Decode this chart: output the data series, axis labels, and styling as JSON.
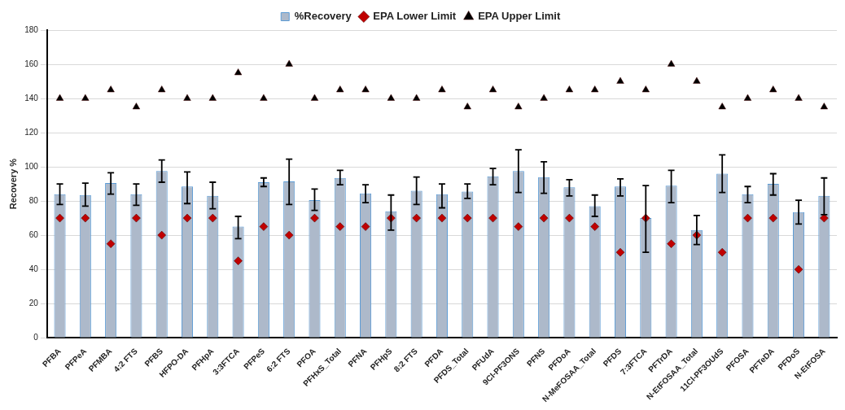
{
  "chart_data": {
    "type": "bar",
    "ylabel": "Recovery %",
    "categories": [
      "PFBA",
      "PFPeA",
      "PFMBA",
      "4:2 FTS",
      "PFBS",
      "HFPO-DA",
      "PFHpA",
      "3:3FTCA",
      "PFPeS",
      "6:2 FTS",
      "PFOA",
      "PFHxS_Total",
      "PFNA",
      "PFHpS",
      "8:2 FTS",
      "PFDA",
      "PFDS_Total",
      "PFUdA",
      "9Cl-PF3ONS",
      "PFNS",
      "PFDoA",
      "N-MeFOSAA_Total",
      "PFDS",
      "7:3FTCA",
      "PFTrDA",
      "N-EtFOSAA_Total",
      "11Cl-PF3OUdS",
      "PFOSA",
      "PFTeDA",
      "PFDoS",
      "N-EtFOSA"
    ],
    "series": [
      {
        "name": "%Recovery",
        "color": "#adb9ca",
        "values": [
          84,
          83.5,
          90.5,
          84,
          97.5,
          88.5,
          83,
          65,
          91,
          91.5,
          80.5,
          93.5,
          84.5,
          74,
          86,
          84,
          85.5,
          94.5,
          97.5,
          94,
          88,
          77,
          88.5,
          70,
          89,
          63,
          96,
          84,
          90,
          73.5,
          83
        ],
        "errors": [
          [
            78,
            90
          ],
          [
            77,
            90.5
          ],
          [
            84,
            96.5
          ],
          [
            77.5,
            90
          ],
          [
            91,
            104
          ],
          [
            78.5,
            97
          ],
          [
            75.5,
            91
          ],
          [
            58,
            71
          ],
          [
            88.5,
            93.5
          ],
          [
            78,
            104.5
          ],
          [
            74.5,
            87
          ],
          [
            89.5,
            98
          ],
          [
            79,
            89.5
          ],
          [
            63,
            83.5
          ],
          [
            78,
            94
          ],
          [
            76,
            90
          ],
          [
            81.5,
            90
          ],
          [
            89.5,
            99
          ],
          [
            85,
            110
          ],
          [
            84.5,
            103
          ],
          [
            83,
            92.5
          ],
          [
            71,
            83.5
          ],
          [
            83,
            93
          ],
          [
            50,
            89
          ],
          [
            79,
            98
          ],
          [
            54.5,
            71.5
          ],
          [
            85,
            107
          ],
          [
            79,
            88.5
          ],
          [
            83.5,
            96
          ],
          [
            66.5,
            80.5
          ],
          [
            72,
            93.5
          ]
        ]
      },
      {
        "name": "EPA Lower Limit",
        "type": "scatter",
        "marker": "diamond",
        "color": "#c00000",
        "x": [
          "PFBA",
          "PFPeA",
          "PFMBA",
          "4:2 FTS",
          "PFBS",
          "HFPO-DA",
          "PFHpA",
          "3:3FTCA",
          "PFPeS",
          "6:2 FTS",
          "PFOA",
          "PFHxS_Total",
          "PFNA",
          "PFHpS",
          "8:2 FTS",
          "PFDA",
          "PFDS_Total",
          "PFUdA",
          "9Cl-PF3ONS",
          "PFNS",
          "PFDoA",
          "N-MeFOSAA_Total",
          "PFDS",
          "7:3FTCA",
          "PFTrDA",
          "N-EtFOSAA_Total",
          "11Cl-PF3OUdS",
          "PFOSA",
          "PFTeDA",
          "PFDoS",
          "N-EtFOSA"
        ],
        "values": [
          70,
          70,
          55,
          70,
          60,
          70,
          70,
          45,
          65,
          60,
          70,
          65,
          65,
          70,
          70,
          70,
          70,
          70,
          65,
          70,
          70,
          65,
          50,
          70,
          55,
          60,
          50,
          70,
          70,
          40,
          70
        ]
      },
      {
        "name": "EPA Upper Limit",
        "type": "scatter",
        "marker": "triangle",
        "color": "#000000",
        "x": [
          "PFBA",
          "PFPeA",
          "PFMBA",
          "4:2 FTS",
          "PFBS",
          "HFPO-DA",
          "PFHpA",
          "3:3FTCA",
          "PFPeS",
          "6:2 FTS",
          "PFOA",
          "PFHxS_Total",
          "PFNA",
          "PFHpS",
          "8:2 FTS",
          "PFDA",
          "PFDS_Total",
          "PFUdA",
          "9Cl-PF3ONS",
          "PFNS",
          "PFDoA",
          "N-MeFOSAA_Total",
          "PFDS",
          "7:3FTCA",
          "PFTrDA",
          "N-EtFOSAA_Total",
          "11Cl-PF3OUdS",
          "PFOSA",
          "PFTeDA",
          "PFDoS",
          "N-EtFOSA"
        ],
        "values": [
          140,
          140,
          145,
          135,
          145,
          140,
          140,
          155,
          140,
          160,
          140,
          145,
          145,
          140,
          140,
          145,
          135,
          145,
          135,
          140,
          145,
          145,
          150,
          145,
          160,
          150,
          135,
          140,
          145,
          140,
          135
        ]
      }
    ],
    "ylim": [
      0,
      180
    ],
    "yticks": [
      0,
      20,
      40,
      60,
      80,
      100,
      120,
      140,
      160,
      180
    ],
    "grid": "y",
    "legend": "top"
  }
}
